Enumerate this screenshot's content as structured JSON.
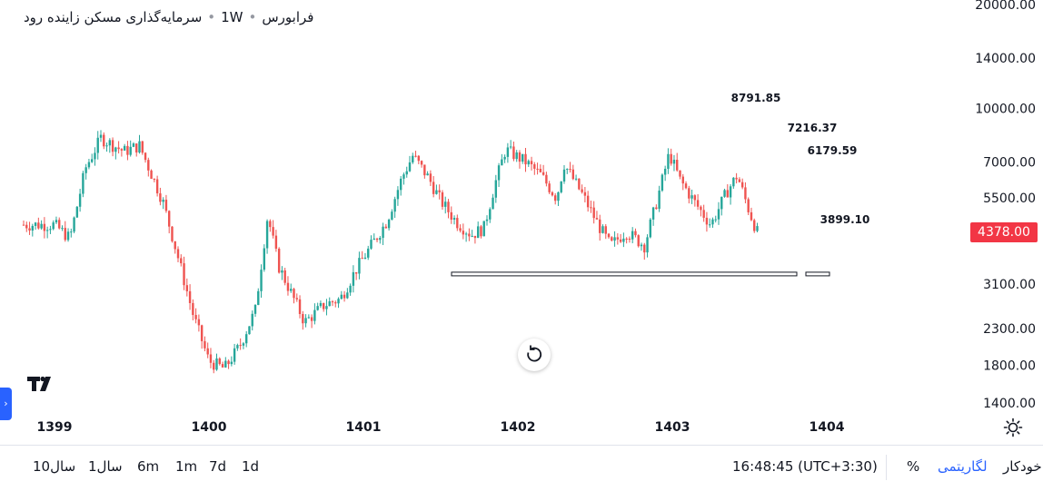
{
  "legend": {
    "name": "سرمایه‌گذاری مسکن زاینده رود",
    "interval": "1W",
    "exchange": "فرابورس"
  },
  "chart_data": {
    "type": "candlestick",
    "scale": "log",
    "y_ticks": [
      {
        "value": 20000,
        "label": "20000.00"
      },
      {
        "value": 14000,
        "label": "14000.00"
      },
      {
        "value": 10000,
        "label": "10000.00"
      },
      {
        "value": 7000,
        "label": "7000.00"
      },
      {
        "value": 5500,
        "label": "5500.00"
      },
      {
        "value": 3100,
        "label": "3100.00"
      },
      {
        "value": 2300,
        "label": "2300.00"
      },
      {
        "value": 1800,
        "label": "1800.00"
      },
      {
        "value": 1400,
        "label": "1400.00"
      }
    ],
    "x_ticks": [
      "1399",
      "1400",
      "1401",
      "1402",
      "1403",
      "1404"
    ],
    "last_price": {
      "value": 4378,
      "label": "4378.00"
    },
    "levels": [
      {
        "value": 8791.85,
        "label": "8791.85"
      },
      {
        "value": 7216.37,
        "label": "7216.37"
      },
      {
        "value": 6179.59,
        "label": "6179.59"
      },
      {
        "value": 3899.1,
        "label": "3899.10"
      }
    ],
    "close_path": [
      [
        1399.0,
        4600
      ],
      [
        1399.1,
        4200
      ],
      [
        1399.2,
        6700
      ],
      [
        1399.3,
        8200
      ],
      [
        1399.45,
        7500
      ],
      [
        1399.55,
        7800
      ],
      [
        1399.7,
        5400
      ],
      [
        1399.8,
        3700
      ],
      [
        1399.9,
        2500
      ],
      [
        1400.0,
        1850
      ],
      [
        1400.1,
        1760
      ],
      [
        1400.2,
        2050
      ],
      [
        1400.3,
        2600
      ],
      [
        1400.38,
        4900
      ],
      [
        1400.45,
        3500
      ],
      [
        1400.55,
        2800
      ],
      [
        1400.62,
        2400
      ],
      [
        1400.75,
        2700
      ],
      [
        1400.85,
        2800
      ],
      [
        1400.95,
        3400
      ],
      [
        1401.05,
        4000
      ],
      [
        1401.15,
        4700
      ],
      [
        1401.25,
        6300
      ],
      [
        1401.32,
        7300
      ],
      [
        1401.42,
        6300
      ],
      [
        1401.5,
        5400
      ],
      [
        1401.6,
        4700
      ],
      [
        1401.7,
        4300
      ],
      [
        1401.78,
        4500
      ],
      [
        1401.85,
        6000
      ],
      [
        1401.92,
        7600
      ],
      [
        1402.05,
        7000
      ],
      [
        1402.15,
        6400
      ],
      [
        1402.25,
        5500
      ],
      [
        1402.3,
        6900
      ],
      [
        1402.42,
        5600
      ],
      [
        1402.52,
        4600
      ],
      [
        1402.6,
        4000
      ],
      [
        1402.7,
        4400
      ],
      [
        1402.82,
        4000
      ],
      [
        1402.9,
        5400
      ],
      [
        1402.98,
        7400
      ],
      [
        1403.05,
        6200
      ],
      [
        1403.15,
        5300
      ],
      [
        1403.25,
        4600
      ],
      [
        1403.35,
        5700
      ],
      [
        1403.42,
        6400
      ],
      [
        1403.5,
        5000
      ],
      [
        1403.55,
        4378
      ]
    ],
    "support_y": 3899.1
  },
  "bottom": {
    "timeframes": [
      "10سال",
      "1سال",
      "6m",
      "1m",
      "7d",
      "1d"
    ],
    "time": "16:48:45 (UTC+3:30)",
    "percent": "%",
    "log_label": "لگاریتمی",
    "auto_label": "خودکار"
  },
  "colors": {
    "up": "#26a69a",
    "down": "#ef5350",
    "price_tag": "#f23645",
    "accent": "#2962ff"
  }
}
